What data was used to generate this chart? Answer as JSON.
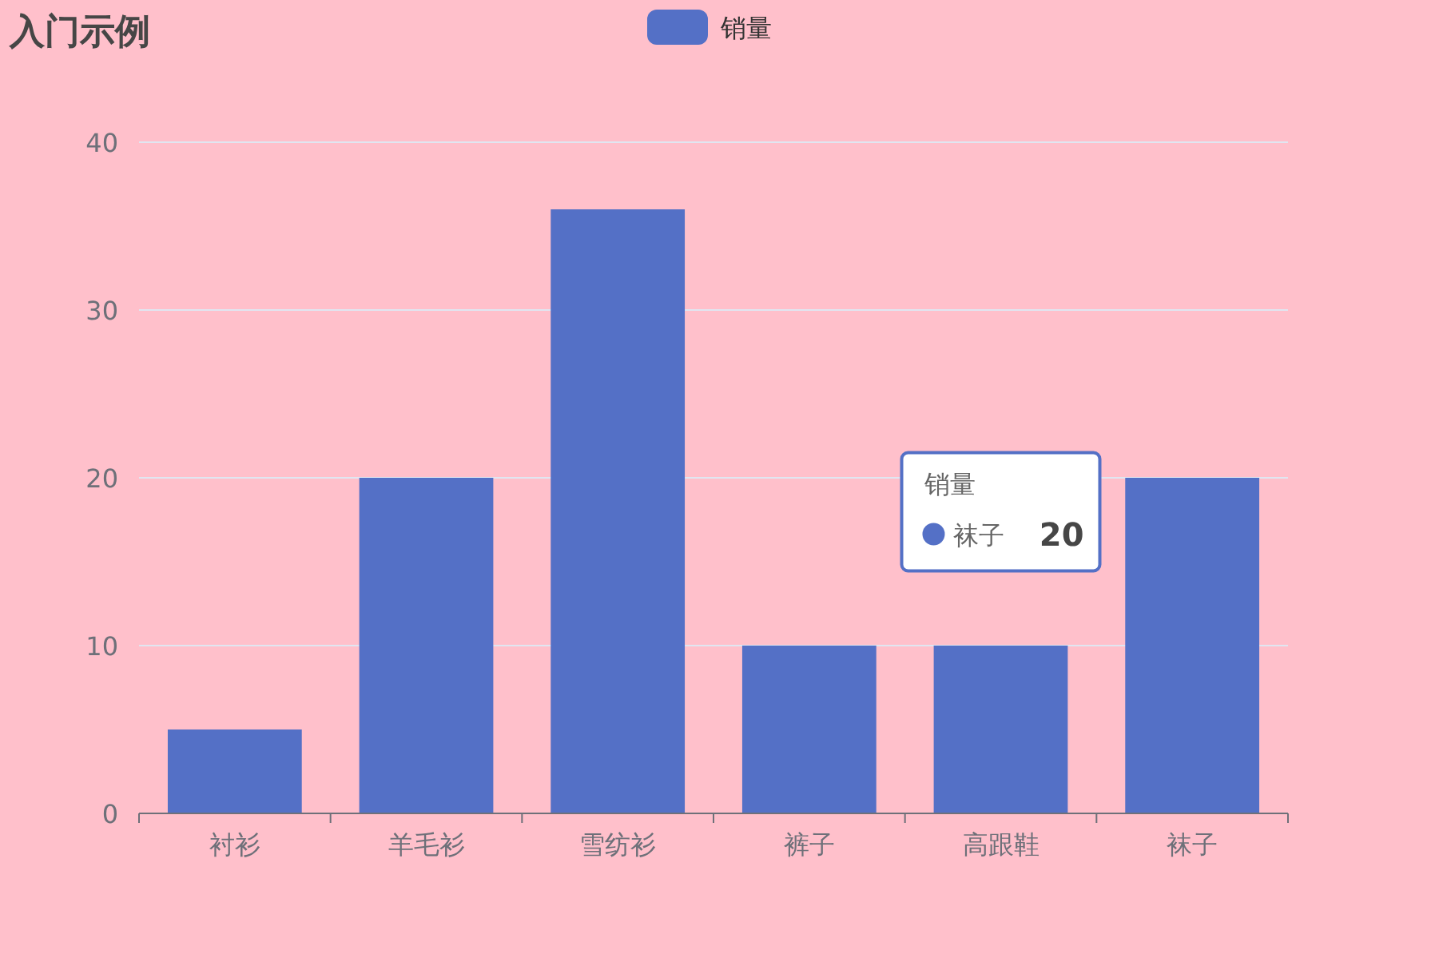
{
  "chart_data": {
    "type": "bar",
    "title": "入门示例",
    "categories": [
      "衬衫",
      "羊毛衫",
      "雪纺衫",
      "裤子",
      "高跟鞋",
      "袜子"
    ],
    "series": [
      {
        "name": "销量",
        "color": "#5470c6",
        "values": [
          5,
          20,
          36,
          10,
          10,
          20
        ]
      }
    ],
    "ylim": [
      0,
      40
    ],
    "yticks": [
      0,
      10,
      20,
      30,
      40
    ],
    "grid": "y",
    "legend": "top",
    "annotations": [
      "销量",
      "袜子",
      "20"
    ]
  }
}
